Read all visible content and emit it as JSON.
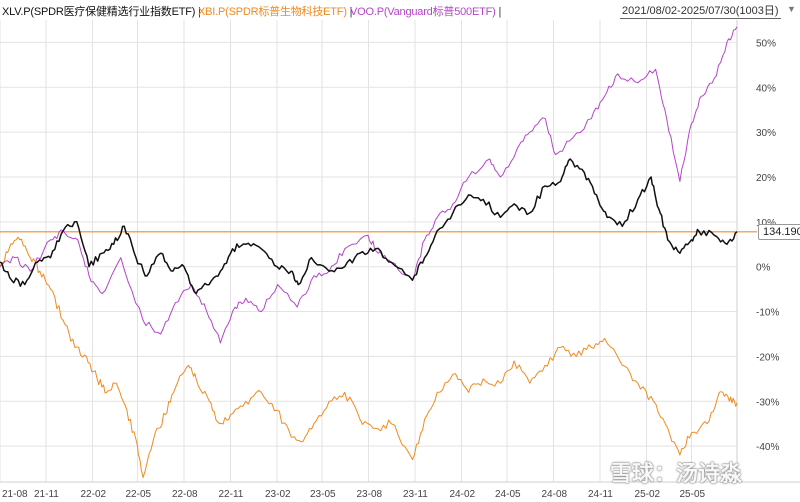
{
  "legend": {
    "xlv": {
      "label": "XLV.P(SPDR医疗保健精选行业指数ETF)",
      "color": "#111111"
    },
    "xbi": {
      "label": "XBI.P(SPDR标普生物科技ETF)",
      "color": "#f08a1e"
    },
    "voo": {
      "label": "VOO.P(Vanguard标普500ETF)",
      "color": "#b545c9"
    },
    "separator": "|"
  },
  "date_range": "2021/08/02-2025/07/30(1003日)",
  "price_tag": "134.190",
  "watermark": "雪球：汤诗淼",
  "colors": {
    "reference_line": "#f5a860",
    "grid": "#e3e3e3"
  },
  "chart_data": {
    "type": "line",
    "x_ticks": [
      "21-08",
      "21-11",
      "22-02",
      "22-05",
      "22-08",
      "22-11",
      "23-02",
      "23-05",
      "23-08",
      "23-11",
      "24-02",
      "24-05",
      "24-08",
      "24-11",
      "25-02",
      "25-05"
    ],
    "y_ticks": [
      "50%",
      "40%",
      "30%",
      "20%",
      "10%",
      "0%",
      "-10%",
      "-20%",
      "-30%",
      "-40%"
    ],
    "ylim": [
      -48,
      55
    ],
    "reference_value": 7.8,
    "series": [
      {
        "name": "XLV.P(SPDR医疗保健精选行业指数ETF)",
        "color": "#111111",
        "x": [
          "2021-08-02",
          "2021-08-25",
          "2021-09-20",
          "2021-10-15",
          "2021-11-10",
          "2021-12-05",
          "2022-01-01",
          "2022-01-25",
          "2022-02-20",
          "2022-03-15",
          "2022-04-05",
          "2022-04-28",
          "2022-05-20",
          "2022-06-16",
          "2022-07-10",
          "2022-08-01",
          "2022-08-25",
          "2022-09-15",
          "2022-10-12",
          "2022-11-05",
          "2022-12-01",
          "2023-01-01",
          "2023-02-01",
          "2023-03-01",
          "2023-03-15",
          "2023-04-10",
          "2023-05-15",
          "2023-06-15",
          "2023-07-15",
          "2023-08-15",
          "2023-09-15",
          "2023-10-27",
          "2023-11-20",
          "2023-12-15",
          "2024-01-15",
          "2024-02-15",
          "2024-03-15",
          "2024-04-18",
          "2024-05-15",
          "2024-06-15",
          "2024-07-15",
          "2024-08-15",
          "2024-09-03",
          "2024-10-01",
          "2024-10-25",
          "2024-11-15",
          "2024-12-15",
          "2025-01-15",
          "2025-02-10",
          "2025-02-25",
          "2025-03-15",
          "2025-04-08",
          "2025-05-01",
          "2025-05-15",
          "2025-06-15",
          "2025-07-10",
          "2025-07-30"
        ],
        "y": [
          1,
          -3,
          -4,
          1,
          2,
          8,
          10,
          0,
          3,
          5,
          9,
          2,
          -2,
          3,
          -1,
          0,
          -6,
          -4,
          -1,
          4,
          5,
          4,
          0,
          -1,
          -4,
          2,
          -1,
          0,
          3,
          4,
          1,
          -3,
          2,
          8,
          12,
          16,
          15,
          11,
          14,
          12,
          18,
          19,
          24,
          21,
          16,
          11,
          9,
          15,
          20,
          13,
          6,
          3,
          6,
          8,
          7,
          5,
          7.8
        ]
      },
      {
        "name": "XBI.P(SPDR标普生物科技ETF)",
        "color": "#f08a1e",
        "x": [
          "2021-08-02",
          "2021-08-20",
          "2021-09-10",
          "2021-10-01",
          "2021-10-20",
          "2021-11-10",
          "2021-12-05",
          "2021-12-28",
          "2022-01-20",
          "2022-02-10",
          "2022-03-01",
          "2022-03-20",
          "2022-04-10",
          "2022-05-01",
          "2022-05-12",
          "2022-06-05",
          "2022-06-25",
          "2022-07-15",
          "2022-08-10",
          "2022-08-25",
          "2022-09-20",
          "2022-10-10",
          "2022-11-01",
          "2022-12-01",
          "2023-01-01",
          "2023-02-01",
          "2023-03-01",
          "2023-03-20",
          "2023-04-15",
          "2023-05-15",
          "2023-06-15",
          "2023-07-15",
          "2023-08-15",
          "2023-09-15",
          "2023-10-27",
          "2023-11-20",
          "2023-12-15",
          "2024-01-15",
          "2024-02-15",
          "2024-03-15",
          "2024-04-18",
          "2024-05-15",
          "2024-06-15",
          "2024-07-15",
          "2024-08-15",
          "2024-09-15",
          "2024-10-15",
          "2024-11-10",
          "2024-12-15",
          "2025-01-15",
          "2025-02-15",
          "2025-03-15",
          "2025-04-08",
          "2025-05-01",
          "2025-06-01",
          "2025-06-25",
          "2025-07-15",
          "2025-07-30"
        ],
        "y": [
          0,
          4,
          6,
          2,
          -1,
          -5,
          -12,
          -18,
          -20,
          -25,
          -28,
          -26,
          -32,
          -40,
          -47,
          -37,
          -33,
          -27,
          -22,
          -25,
          -30,
          -35,
          -33,
          -30,
          -28,
          -32,
          -38,
          -39,
          -35,
          -30,
          -28,
          -34,
          -36,
          -35,
          -43,
          -34,
          -28,
          -24,
          -28,
          -25,
          -26,
          -21,
          -26,
          -22,
          -18,
          -20,
          -18,
          -16,
          -22,
          -26,
          -30,
          -36,
          -42,
          -37,
          -35,
          -28,
          -30,
          -30.3
        ]
      },
      {
        "name": "VOO.P(Vanguard标普500ETF)",
        "color": "#b545c9",
        "x": [
          "2021-08-02",
          "2021-09-01",
          "2021-10-01",
          "2021-11-10",
          "2021-12-05",
          "2022-01-03",
          "2022-01-25",
          "2022-02-20",
          "2022-03-29",
          "2022-05-12",
          "2022-06-16",
          "2022-07-15",
          "2022-08-16",
          "2022-09-15",
          "2022-10-12",
          "2022-11-10",
          "2022-12-01",
          "2023-01-01",
          "2023-02-02",
          "2023-03-13",
          "2023-04-15",
          "2023-05-15",
          "2023-06-15",
          "2023-07-31",
          "2023-08-20",
          "2023-09-15",
          "2023-10-27",
          "2023-11-20",
          "2023-12-15",
          "2024-01-15",
          "2024-02-15",
          "2024-03-28",
          "2024-04-18",
          "2024-05-20",
          "2024-06-15",
          "2024-07-16",
          "2024-08-05",
          "2024-09-01",
          "2024-10-15",
          "2024-11-10",
          "2024-12-06",
          "2025-01-15",
          "2025-02-19",
          "2025-03-13",
          "2025-04-08",
          "2025-05-01",
          "2025-05-20",
          "2025-06-15",
          "2025-07-10",
          "2025-07-30"
        ],
        "y": [
          0,
          2,
          -1,
          6,
          8,
          6,
          -2,
          -6,
          2,
          -12,
          -15,
          -8,
          -4,
          -10,
          -17,
          -9,
          -7,
          -10,
          -4,
          -9,
          -2,
          -1,
          4,
          7,
          3,
          1,
          -3,
          6,
          11,
          14,
          20,
          24,
          20,
          26,
          30,
          33,
          25,
          28,
          33,
          38,
          43,
          41,
          44,
          33,
          19,
          32,
          38,
          42,
          50,
          53.5
        ]
      }
    ]
  }
}
